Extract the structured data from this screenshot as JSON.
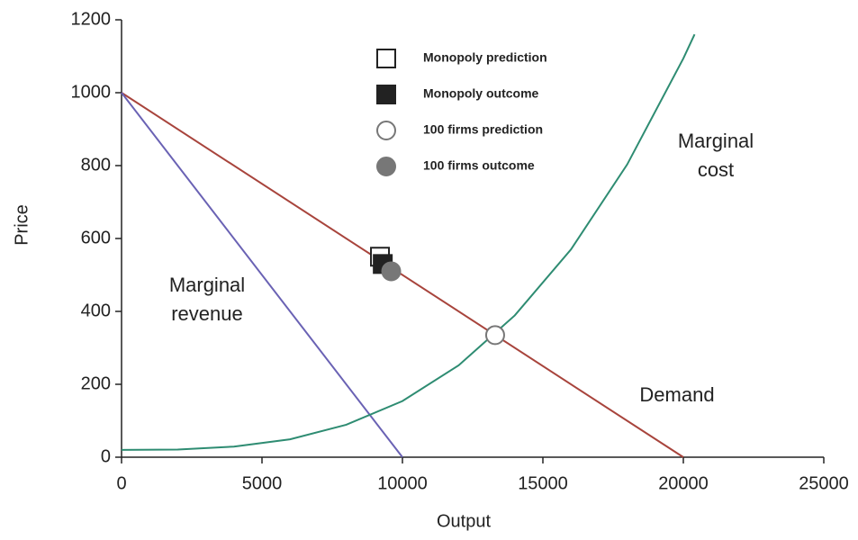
{
  "chart_data": {
    "type": "line",
    "xlabel": "Output",
    "ylabel": "Price",
    "xlim": [
      0,
      25000
    ],
    "ylim": [
      0,
      1200
    ],
    "xticks": [
      0,
      5000,
      10000,
      15000,
      20000,
      25000
    ],
    "yticks": [
      0,
      200,
      400,
      600,
      800,
      1000,
      1200
    ],
    "series": [
      {
        "name": "Demand",
        "color": "#a8443c",
        "x": [
          0,
          20000
        ],
        "values": [
          1000,
          0
        ]
      },
      {
        "name": "Marginal revenue",
        "color": "#6a62b4",
        "x": [
          0,
          10000
        ],
        "values": [
          1000,
          0
        ]
      },
      {
        "name": "Marginal cost",
        "color": "#2e8c72",
        "x": [
          0,
          2000,
          4000,
          6000,
          8000,
          10000,
          12000,
          14000,
          16000,
          18000,
          20000,
          20400
        ],
        "values": [
          20,
          21,
          29,
          49,
          89,
          154,
          252,
          389,
          570,
          803,
          1094,
          1160
        ]
      }
    ],
    "points": [
      {
        "name": "Monopoly prediction",
        "marker": "square-open",
        "color": "#222",
        "x": [
          9200
        ],
        "values": [
          550
        ]
      },
      {
        "name": "Monopoly outcome",
        "marker": "square",
        "color": "#222",
        "x": [
          9300
        ],
        "values": [
          530
        ]
      },
      {
        "name": "100 firms prediction",
        "marker": "circle-open",
        "color": "#777",
        "x": [
          13300
        ],
        "values": [
          335
        ]
      },
      {
        "name": "100 firms outcome",
        "marker": "circle",
        "color": "#777",
        "x": [
          9600
        ],
        "values": [
          510
        ]
      }
    ],
    "annotations": [
      {
        "lines": [
          "Marginal",
          "revenue"
        ]
      },
      {
        "lines": [
          "Marginal",
          "cost"
        ]
      },
      {
        "lines": [
          "Demand"
        ]
      }
    ]
  }
}
